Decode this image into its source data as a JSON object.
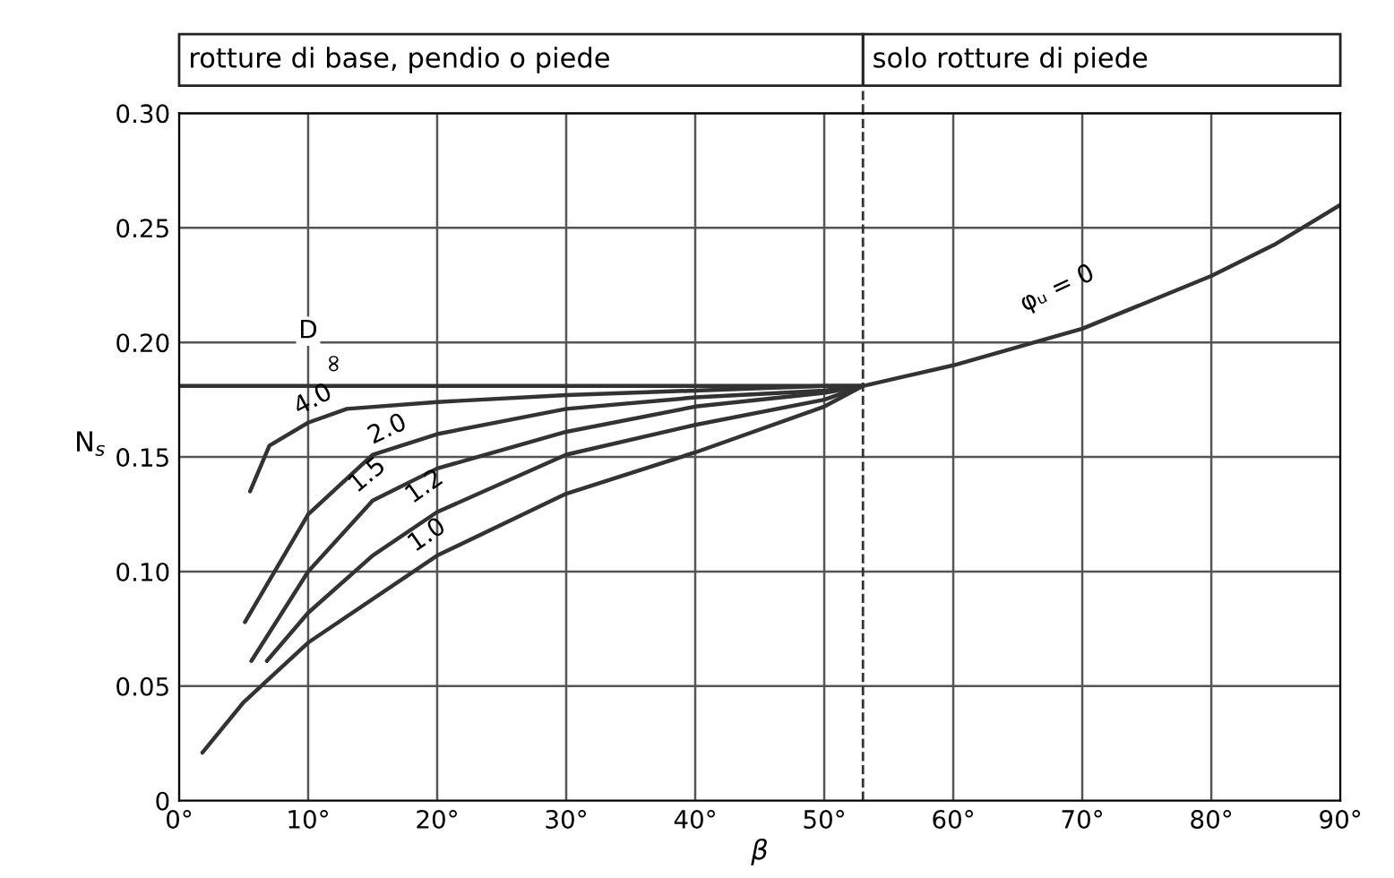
{
  "chart_data": {
    "type": "line",
    "xlabel": "β",
    "ylabel": "N$_{s}$",
    "series": [
      {
        "color": "#333333",
        "x": [
          0,
          10,
          20,
          30,
          40,
          53
        ],
        "values": [
          0.181,
          0.181,
          0.181,
          0.181,
          0.181,
          0.181
        ]
      },
      {
        "color": "#333333",
        "x": [
          5.5,
          7,
          10,
          13,
          20,
          30,
          40,
          50,
          53
        ],
        "values": [
          0.135,
          0.155,
          0.165,
          0.171,
          0.174,
          0.177,
          0.179,
          0.181,
          0.181
        ]
      },
      {
        "color": "#333333",
        "x": [
          5.1,
          10,
          15,
          20,
          30,
          40,
          50,
          53
        ],
        "values": [
          0.078,
          0.125,
          0.151,
          0.16,
          0.171,
          0.176,
          0.179,
          0.181
        ]
      },
      {
        "color": "#333333",
        "x": [
          5.6,
          10,
          15,
          20,
          30,
          40,
          50,
          53
        ],
        "values": [
          0.061,
          0.1,
          0.131,
          0.145,
          0.161,
          0.172,
          0.178,
          0.181
        ]
      },
      {
        "color": "#333333",
        "x": [
          6.8,
          10,
          15,
          20,
          30,
          40,
          50,
          53
        ],
        "values": [
          0.061,
          0.082,
          0.107,
          0.126,
          0.151,
          0.164,
          0.175,
          0.181
        ]
      },
      {
        "color": "#333333",
        "x": [
          1.8,
          5,
          10,
          20,
          30,
          40,
          50,
          53,
          60,
          70,
          80,
          85,
          90
        ],
        "values": [
          0.021,
          0.043,
          0.069,
          0.107,
          0.134,
          0.152,
          0.172,
          0.181,
          0.19,
          0.206,
          0.229,
          0.243,
          0.26
        ]
      }
    ],
    "xlim": [
      0,
      90
    ],
    "ylim": [
      0,
      0.3
    ],
    "xticks": [
      {
        "value": 0,
        "label": "0°"
      },
      {
        "value": 10,
        "label": "10°"
      },
      {
        "value": 20,
        "label": "20°"
      },
      {
        "value": 30,
        "label": "30°"
      },
      {
        "value": 40,
        "label": "40°"
      },
      {
        "value": 50,
        "label": "50°"
      },
      {
        "value": 60,
        "label": "60°"
      },
      {
        "value": 70,
        "label": "70°"
      },
      {
        "value": 80,
        "label": "80°"
      },
      {
        "value": 90,
        "label": "90°"
      }
    ],
    "yticks": [
      0,
      {
        "value": 0.05,
        "label": "0.05"
      },
      {
        "value": 0.1,
        "label": "0.10"
      },
      {
        "value": 0.15,
        "label": "0.15"
      },
      {
        "value": 0.2,
        "label": "0.20"
      },
      {
        "value": 0.25,
        "label": "0.25"
      },
      {
        "value": 0.3,
        "label": "0.30"
      }
    ],
    "grid": true,
    "marker": "none",
    "line_style": "solid",
    "ref_lines": [
      {
        "axis": "x",
        "value": 53,
        "color": "#333333",
        "line_style": "dashed"
      }
    ],
    "annotations": [
      "rotture di base, pendio o piede",
      "solo rotture di piede",
      {
        "text": "D",
        "x": 10,
        "y": 0.181
      },
      {
        "text": "∞",
        "x": 10,
        "y": 0.181
      },
      {
        "text": "4.0",
        "x": 10,
        "y": 0.165
      },
      {
        "text": "2.0",
        "x": 15,
        "y": 0.151
      },
      {
        "text": "1.5",
        "x": 15,
        "y": 0.131
      },
      {
        "text": "1.2",
        "x": 20,
        "y": 0.126
      },
      {
        "text": "1.0",
        "x": 20,
        "y": 0.107
      },
      {
        "text": "φᵤ = 0",
        "x": 70,
        "y": 0.206
      }
    ]
  }
}
